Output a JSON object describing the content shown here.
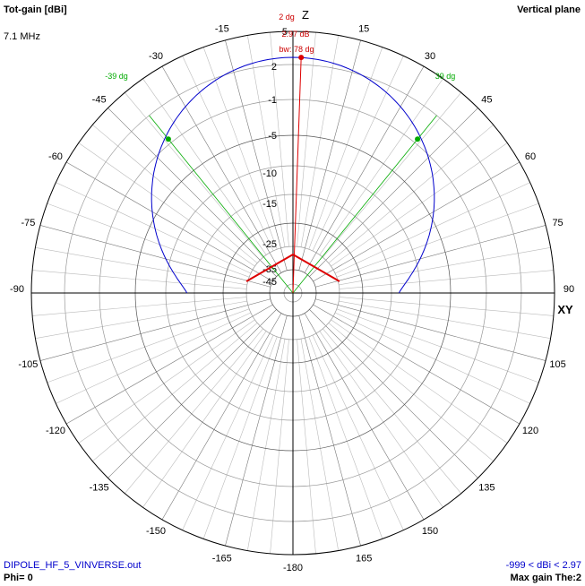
{
  "header": {
    "title": "Tot-gain [dBi]",
    "frequency": "7.1 MHz",
    "plane": "Vertical plane"
  },
  "footer": {
    "file": "DIPOLE_HF_5_VINVERSE.out",
    "phi": "Phi= 0",
    "range": "-999 < dBi < 2.97",
    "max_gain": "Max gain The:2"
  },
  "axes": {
    "z_label": "Z",
    "xy_label": "XY"
  },
  "colors": {
    "pattern": "#0000cc",
    "antenna": "#dd0000",
    "beamwidth": "#00aa00",
    "marker_text": "#cc0000",
    "grid": "#888888",
    "axis": "#000000"
  },
  "markers": {
    "max_angle": "2 dg",
    "max_gain": "2.97 dB",
    "beamwidth": "bw: 78 dg",
    "half_power_left": "-39 dg",
    "half_power_right": "39 dg"
  },
  "chart_data": {
    "type": "polar",
    "theta_ticks_deg": [
      -180,
      -165,
      -150,
      -135,
      -120,
      -105,
      -90,
      -75,
      -60,
      -45,
      -30,
      -15,
      15,
      30,
      45,
      60,
      75,
      90,
      105,
      120,
      135,
      150,
      165
    ],
    "theta_tick_labels": [
      "-180",
      "-165",
      "-150",
      "-135",
      "-120",
      "-105",
      "-90",
      "-75",
      "-60",
      "-45",
      "-30",
      "-15",
      "15",
      "30",
      "45",
      "60",
      "75",
      "90",
      "105",
      "120",
      "135",
      "150",
      "165"
    ],
    "top_tick_label": "5",
    "radial_labels": [
      "5",
      "2",
      "-1",
      "-5",
      "-10",
      "-15",
      "-25",
      "-35",
      "-45"
    ],
    "max_gain_dbi": 2.97,
    "max_gain_theta_deg": 2,
    "beamwidth_deg": 78,
    "half_power_theta_deg": [
      -39,
      39
    ]
  }
}
